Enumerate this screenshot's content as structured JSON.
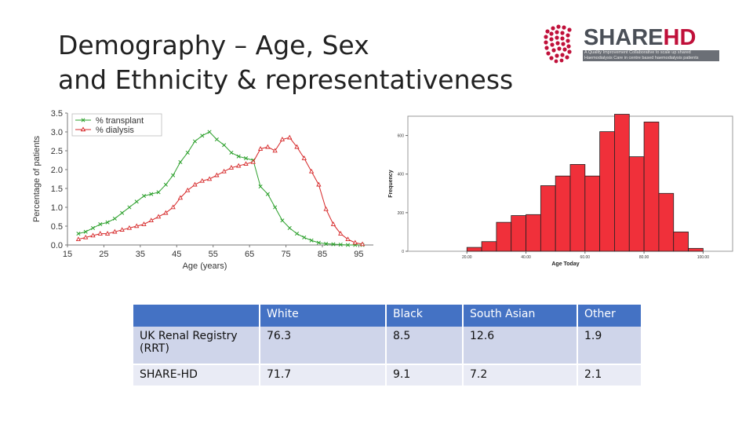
{
  "slide": {
    "title_line1": "Demography – Age, Sex",
    "title_line2": "and Ethnicity & representativeness"
  },
  "logo": {
    "word_share": "SHARE",
    "word_hd": "HD",
    "tagline": "A Quality Improvement Collaborative to scale up shared Haemodialysis Care in centre based haemodialysis patients"
  },
  "chart_data": [
    {
      "type": "line",
      "title": "",
      "xlabel": "Age (years)",
      "ylabel": "Percentage of patients",
      "xlim": [
        15,
        99
      ],
      "ylim": [
        0,
        3.5
      ],
      "xticks": [
        15,
        25,
        35,
        45,
        55,
        65,
        75,
        85,
        95
      ],
      "yticks": [
        0.0,
        0.5,
        1.0,
        1.5,
        2.0,
        2.5,
        3.0,
        3.5
      ],
      "ytick_labels": [
        "0.0",
        "0.5",
        "1.0",
        "1.5",
        "2.0",
        "2.5",
        "3.0",
        "3.5"
      ],
      "legend_position": "top-left",
      "series": [
        {
          "name": "% transplant",
          "color": "#2ca02c",
          "marker": "x",
          "x": [
            18,
            20,
            22,
            24,
            26,
            28,
            30,
            32,
            34,
            36,
            38,
            40,
            42,
            44,
            46,
            48,
            50,
            52,
            54,
            56,
            58,
            60,
            62,
            64,
            66,
            68,
            70,
            72,
            74,
            76,
            78,
            80,
            82,
            84,
            86,
            88,
            90,
            92,
            94,
            96
          ],
          "y": [
            0.3,
            0.35,
            0.45,
            0.55,
            0.6,
            0.7,
            0.85,
            1.0,
            1.15,
            1.3,
            1.35,
            1.4,
            1.6,
            1.85,
            2.2,
            2.45,
            2.75,
            2.9,
            3.0,
            2.8,
            2.65,
            2.45,
            2.35,
            2.3,
            2.25,
            1.55,
            1.35,
            1.0,
            0.65,
            0.45,
            0.3,
            0.2,
            0.12,
            0.06,
            0.03,
            0.02,
            0.01,
            0.0,
            0.0,
            0.0
          ]
        },
        {
          "name": "% dialysis",
          "color": "#d62728",
          "marker": "triangle",
          "x": [
            18,
            20,
            22,
            24,
            26,
            28,
            30,
            32,
            34,
            36,
            38,
            40,
            42,
            44,
            46,
            48,
            50,
            52,
            54,
            56,
            58,
            60,
            62,
            64,
            66,
            68,
            70,
            72,
            74,
            76,
            78,
            80,
            82,
            84,
            86,
            88,
            90,
            92,
            94,
            96
          ],
          "y": [
            0.15,
            0.2,
            0.25,
            0.3,
            0.3,
            0.35,
            0.4,
            0.45,
            0.5,
            0.55,
            0.65,
            0.75,
            0.85,
            1.0,
            1.25,
            1.45,
            1.6,
            1.7,
            1.75,
            1.85,
            1.95,
            2.05,
            2.1,
            2.15,
            2.2,
            2.55,
            2.6,
            2.5,
            2.8,
            2.85,
            2.6,
            2.3,
            1.95,
            1.6,
            0.95,
            0.55,
            0.3,
            0.15,
            0.06,
            0.02
          ]
        }
      ]
    },
    {
      "type": "bar",
      "title": "",
      "xlabel": "Age Today",
      "ylabel": "Frequency",
      "ylim": [
        0,
        700
      ],
      "yticks": [
        0,
        200,
        400,
        600
      ],
      "yticks_labels": [
        "0",
        "200",
        "400",
        "600"
      ],
      "xlim": [
        0,
        110
      ],
      "xticks": [
        20,
        40,
        60,
        80,
        100
      ],
      "xtick_labels": [
        "20.00",
        "40.00",
        "60.00",
        "80.00",
        "100.00"
      ],
      "bin_width": 5,
      "bin_starts": [
        20,
        25,
        30,
        35,
        40,
        45,
        50,
        55,
        60,
        65,
        70,
        75,
        80,
        85,
        90,
        95
      ],
      "values": [
        20,
        50,
        150,
        185,
        190,
        340,
        390,
        450,
        390,
        620,
        710,
        490,
        670,
        300,
        100,
        15
      ],
      "bar_color": "#f0303a"
    }
  ],
  "ethnicity_table": {
    "headers": [
      "",
      "White",
      "Black",
      "South Asian",
      "Other"
    ],
    "rows": [
      {
        "label": "UK Renal Registry (RRT)",
        "values": [
          "76.3",
          "8.5",
          "12.6",
          "1.9"
        ]
      },
      {
        "label": "SHARE-HD",
        "values": [
          "71.7",
          "9.1",
          "7.2",
          "2.1"
        ]
      }
    ]
  }
}
